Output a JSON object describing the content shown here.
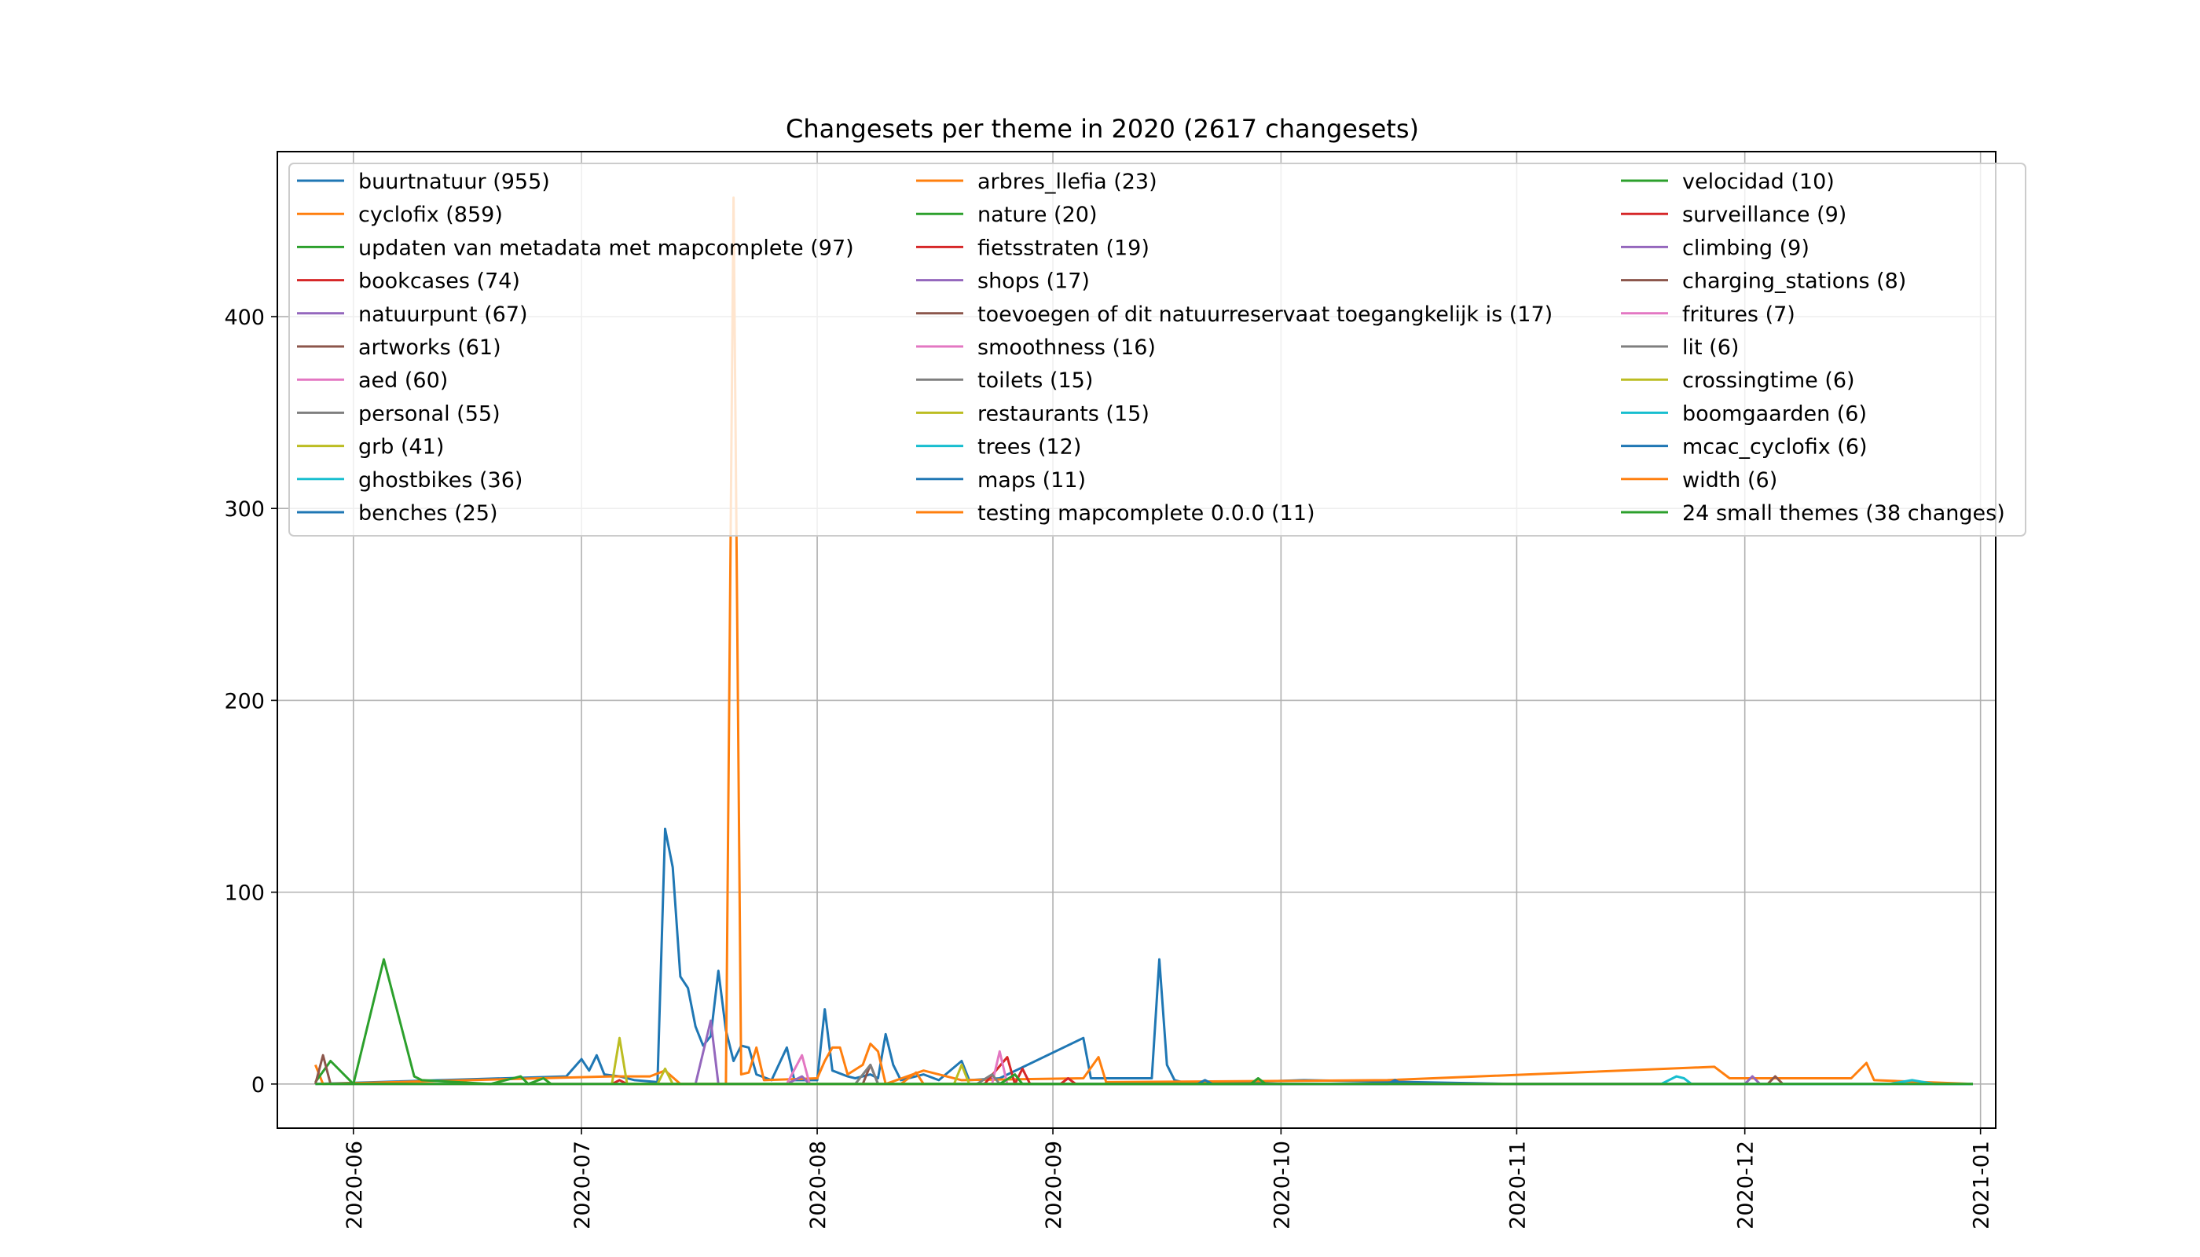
{
  "chart_data": {
    "type": "line",
    "title": "Changesets per theme in 2020 (2617 changesets)",
    "xlabel": "",
    "ylabel": "",
    "x_range": [
      "2020-05-22",
      "2021-01-03"
    ],
    "ylim": [
      -23,
      486
    ],
    "grid": true,
    "legend_position": "top",
    "x_ticks": [
      "2020-06",
      "2020-07",
      "2020-08",
      "2020-09",
      "2020-10",
      "2020-11",
      "2020-12",
      "2021-01"
    ],
    "y_ticks": [
      "0",
      "100",
      "200",
      "300",
      "400"
    ],
    "series": [
      {
        "name": "buurtnatuur (955)",
        "color": "#1f77b4",
        "points": [
          [
            "2020-05-27",
            0
          ],
          [
            "2020-06-29",
            4
          ],
          [
            "2020-07-01",
            13
          ],
          [
            "2020-07-02",
            7
          ],
          [
            "2020-07-03",
            15
          ],
          [
            "2020-07-04",
            5
          ],
          [
            "2020-07-06",
            4
          ],
          [
            "2020-07-08",
            2
          ],
          [
            "2020-07-11",
            1
          ],
          [
            "2020-07-12",
            133
          ],
          [
            "2020-07-13",
            113
          ],
          [
            "2020-07-14",
            56
          ],
          [
            "2020-07-15",
            50
          ],
          [
            "2020-07-16",
            30
          ],
          [
            "2020-07-17",
            20
          ],
          [
            "2020-07-18",
            25
          ],
          [
            "2020-07-19",
            59
          ],
          [
            "2020-07-20",
            28
          ],
          [
            "2020-07-21",
            12
          ],
          [
            "2020-07-22",
            20
          ],
          [
            "2020-07-23",
            19
          ],
          [
            "2020-07-24",
            5
          ],
          [
            "2020-07-26",
            2
          ],
          [
            "2020-07-28",
            19
          ],
          [
            "2020-07-29",
            2
          ],
          [
            "2020-08-01",
            2
          ],
          [
            "2020-08-02",
            39
          ],
          [
            "2020-08-03",
            7
          ],
          [
            "2020-08-05",
            4
          ],
          [
            "2020-08-06",
            3
          ],
          [
            "2020-08-08",
            5
          ],
          [
            "2020-08-09",
            3
          ],
          [
            "2020-08-10",
            26
          ],
          [
            "2020-08-11",
            10
          ],
          [
            "2020-08-12",
            2
          ],
          [
            "2020-08-15",
            5
          ],
          [
            "2020-08-17",
            2
          ],
          [
            "2020-08-20",
            12
          ],
          [
            "2020-08-21",
            2
          ],
          [
            "2020-08-25",
            3
          ],
          [
            "2020-09-05",
            24
          ],
          [
            "2020-09-06",
            3
          ],
          [
            "2020-09-13",
            3
          ],
          [
            "2020-09-14",
            3
          ],
          [
            "2020-09-15",
            65
          ],
          [
            "2020-09-16",
            10
          ],
          [
            "2020-09-17",
            2
          ],
          [
            "2020-09-19",
            0
          ],
          [
            "2020-10-04",
            2
          ],
          [
            "2020-11-01",
            0
          ],
          [
            "2020-12-31",
            0
          ]
        ]
      },
      {
        "name": "cyclofix (859)",
        "color": "#ff7f0e",
        "points": [
          [
            "2020-05-27",
            10
          ],
          [
            "2020-05-28",
            0
          ],
          [
            "2020-07-05",
            4
          ],
          [
            "2020-07-08",
            4
          ],
          [
            "2020-07-10",
            4
          ],
          [
            "2020-07-12",
            7
          ],
          [
            "2020-07-14",
            0
          ],
          [
            "2020-07-20",
            0
          ],
          [
            "2020-07-21",
            462
          ],
          [
            "2020-07-22",
            5
          ],
          [
            "2020-07-23",
            6
          ],
          [
            "2020-07-24",
            19
          ],
          [
            "2020-07-25",
            2
          ],
          [
            "2020-08-01",
            3
          ],
          [
            "2020-08-02",
            12
          ],
          [
            "2020-08-03",
            19
          ],
          [
            "2020-08-04",
            19
          ],
          [
            "2020-08-05",
            5
          ],
          [
            "2020-08-07",
            10
          ],
          [
            "2020-08-08",
            21
          ],
          [
            "2020-08-09",
            17
          ],
          [
            "2020-08-10",
            0
          ],
          [
            "2020-08-15",
            7
          ],
          [
            "2020-08-20",
            2
          ],
          [
            "2020-09-05",
            3
          ],
          [
            "2020-09-07",
            14
          ],
          [
            "2020-09-08",
            1
          ],
          [
            "2020-10-15",
            2
          ],
          [
            "2020-11-27",
            9
          ],
          [
            "2020-11-29",
            3
          ],
          [
            "2020-12-05",
            3
          ],
          [
            "2020-12-15",
            3
          ],
          [
            "2020-12-17",
            11
          ],
          [
            "2020-12-18",
            2
          ],
          [
            "2020-12-31",
            0
          ]
        ]
      },
      {
        "name": "updaten van metadata met mapcomplete (97)",
        "color": "#2ca02c",
        "points": [
          [
            "2020-05-27",
            1
          ],
          [
            "2020-05-29",
            12
          ],
          [
            "2020-06-01",
            0
          ],
          [
            "2020-06-05",
            65
          ],
          [
            "2020-06-09",
            4
          ],
          [
            "2020-06-10",
            2
          ],
          [
            "2020-06-19",
            0
          ],
          [
            "2020-06-23",
            4
          ],
          [
            "2020-06-24",
            0
          ],
          [
            "2020-06-26",
            3
          ],
          [
            "2020-06-27",
            0
          ]
        ]
      },
      {
        "name": "bookcases (74)",
        "color": "#d62728",
        "points": [
          [
            "2020-07-05",
            0
          ],
          [
            "2020-07-06",
            2
          ],
          [
            "2020-07-07",
            0
          ],
          [
            "2020-08-23",
            0
          ],
          [
            "2020-08-26",
            14
          ],
          [
            "2020-08-27",
            0
          ],
          [
            "2020-08-28",
            8
          ],
          [
            "2020-08-29",
            0
          ]
        ]
      },
      {
        "name": "natuurpunt (67)",
        "color": "#9467bd",
        "points": [
          [
            "2020-07-16",
            0
          ],
          [
            "2020-07-18",
            33
          ],
          [
            "2020-07-19",
            0
          ],
          [
            "2020-07-28",
            0
          ],
          [
            "2020-07-30",
            4
          ],
          [
            "2020-07-31",
            0
          ],
          [
            "2020-12-01",
            0
          ],
          [
            "2020-12-02",
            4
          ],
          [
            "2020-12-03",
            0
          ]
        ]
      },
      {
        "name": "artworks (61)",
        "color": "#8c564b",
        "points": [
          [
            "2020-05-27",
            0
          ],
          [
            "2020-05-28",
            15
          ],
          [
            "2020-05-29",
            0
          ],
          [
            "2020-08-07",
            0
          ],
          [
            "2020-08-08",
            10
          ],
          [
            "2020-08-09",
            0
          ],
          [
            "2020-12-04",
            0
          ],
          [
            "2020-12-05",
            4
          ],
          [
            "2020-12-06",
            0
          ]
        ]
      },
      {
        "name": "aed (60)",
        "color": "#e377c2",
        "points": [
          [
            "2020-07-28",
            0
          ],
          [
            "2020-07-30",
            15
          ],
          [
            "2020-07-31",
            0
          ],
          [
            "2020-08-24",
            0
          ],
          [
            "2020-08-25",
            17
          ],
          [
            "2020-08-26",
            0
          ]
        ]
      },
      {
        "name": "personal (55)",
        "color": "#7f7f7f",
        "points": [
          [
            "2020-08-06",
            0
          ],
          [
            "2020-08-08",
            10
          ],
          [
            "2020-08-09",
            0
          ],
          [
            "2020-08-22",
            0
          ],
          [
            "2020-08-24",
            5
          ],
          [
            "2020-08-25",
            0
          ]
        ]
      },
      {
        "name": "grb (41)",
        "color": "#bcbd22",
        "points": [
          [
            "2020-07-05",
            0
          ],
          [
            "2020-07-06",
            24
          ],
          [
            "2020-07-07",
            0
          ],
          [
            "2020-07-11",
            0
          ],
          [
            "2020-07-12",
            8
          ],
          [
            "2020-07-13",
            0
          ],
          [
            "2020-08-19",
            0
          ],
          [
            "2020-08-20",
            10
          ],
          [
            "2020-08-21",
            0
          ]
        ]
      },
      {
        "name": "ghostbikes (36)",
        "color": "#17becf",
        "points": [
          [
            "2020-11-20",
            0
          ],
          [
            "2020-11-22",
            4
          ],
          [
            "2020-11-23",
            3
          ],
          [
            "2020-11-24",
            0
          ],
          [
            "2020-12-20",
            0
          ],
          [
            "2020-12-23",
            2
          ],
          [
            "2020-12-26",
            0
          ],
          [
            "2020-12-31",
            0
          ]
        ]
      },
      {
        "name": "benches (25)",
        "color": "#1f77b4",
        "points": [
          [
            "2020-09-20",
            0
          ],
          [
            "2020-09-21",
            2
          ],
          [
            "2020-09-22",
            0
          ],
          [
            "2020-10-15",
            0
          ],
          [
            "2020-10-16",
            2
          ],
          [
            "2020-10-17",
            0
          ]
        ]
      },
      {
        "name": "arbres_llefia (23)",
        "color": "#ff7f0e",
        "points": [
          [
            "2020-08-12",
            0
          ],
          [
            "2020-08-14",
            6
          ],
          [
            "2020-08-15",
            0
          ]
        ]
      },
      {
        "name": "nature (20)",
        "color": "#2ca02c",
        "points": [
          [
            "2020-08-25",
            0
          ],
          [
            "2020-08-27",
            5
          ],
          [
            "2020-08-28",
            0
          ],
          [
            "2020-09-27",
            0
          ],
          [
            "2020-09-28",
            3
          ],
          [
            "2020-09-29",
            0
          ]
        ]
      },
      {
        "name": "fietsstraten (19)",
        "color": "#d62728",
        "points": [
          [
            "2020-09-02",
            0
          ],
          [
            "2020-09-03",
            3
          ],
          [
            "2020-09-04",
            0
          ]
        ]
      },
      {
        "name": "shops (17)",
        "color": "#9467bd",
        "points": []
      },
      {
        "name": "toevoegen of dit natuurreservaat toegangkelijk is (17)",
        "color": "#8c564b",
        "points": []
      },
      {
        "name": "smoothness (16)",
        "color": "#e377c2",
        "points": []
      },
      {
        "name": "toilets (15)",
        "color": "#7f7f7f",
        "points": []
      },
      {
        "name": "restaurants (15)",
        "color": "#bcbd22",
        "points": []
      },
      {
        "name": "trees (12)",
        "color": "#17becf",
        "points": []
      },
      {
        "name": "maps (11)",
        "color": "#1f77b4",
        "points": []
      },
      {
        "name": "testing mapcomplete 0.0.0 (11)",
        "color": "#ff7f0e",
        "points": []
      },
      {
        "name": "velocidad (10)",
        "color": "#2ca02c",
        "points": []
      },
      {
        "name": "surveillance (9)",
        "color": "#d62728",
        "points": []
      },
      {
        "name": "climbing (9)",
        "color": "#9467bd",
        "points": []
      },
      {
        "name": "charging_stations (8)",
        "color": "#8c564b",
        "points": []
      },
      {
        "name": "fritures (7)",
        "color": "#e377c2",
        "points": []
      },
      {
        "name": "lit (6)",
        "color": "#7f7f7f",
        "points": []
      },
      {
        "name": "crossingtime (6)",
        "color": "#bcbd22",
        "points": []
      },
      {
        "name": "boomgaarden (6)",
        "color": "#17becf",
        "points": []
      },
      {
        "name": "mcac_cyclofix (6)",
        "color": "#1f77b4",
        "points": []
      },
      {
        "name": "width (6)",
        "color": "#ff7f0e",
        "points": []
      },
      {
        "name": "24 small themes (38 changes)",
        "color": "#2ca02c",
        "points": [
          [
            "2020-05-27",
            0
          ],
          [
            "2020-12-31",
            0
          ]
        ]
      }
    ]
  }
}
